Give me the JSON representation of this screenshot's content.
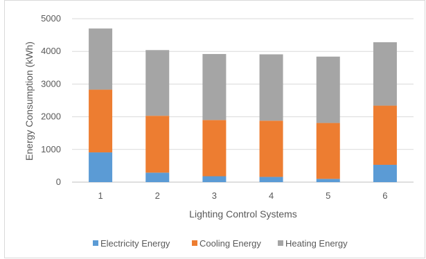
{
  "chart_data": {
    "type": "bar",
    "stacked": true,
    "title": "",
    "xlabel": "Lighting Control Systems",
    "ylabel": "Energy Consumption (kWh)",
    "categories": [
      "1",
      "2",
      "3",
      "4",
      "5",
      "6"
    ],
    "ylim": [
      0,
      5000
    ],
    "yticks": [
      "0",
      "1000",
      "2000",
      "3000",
      "4000",
      "5000"
    ],
    "grid": true,
    "legend_position": "bottom",
    "series": [
      {
        "name": "Electricity Energy",
        "color": "#5b9bd5",
        "values": [
          910,
          290,
          180,
          160,
          100,
          530
        ]
      },
      {
        "name": "Cooling Energy",
        "color": "#ed7d31",
        "values": [
          1920,
          1740,
          1720,
          1720,
          1710,
          1810
        ]
      },
      {
        "name": "Heating Energy",
        "color": "#a5a5a5",
        "values": [
          1870,
          2010,
          2020,
          2030,
          2030,
          1940
        ]
      }
    ]
  }
}
